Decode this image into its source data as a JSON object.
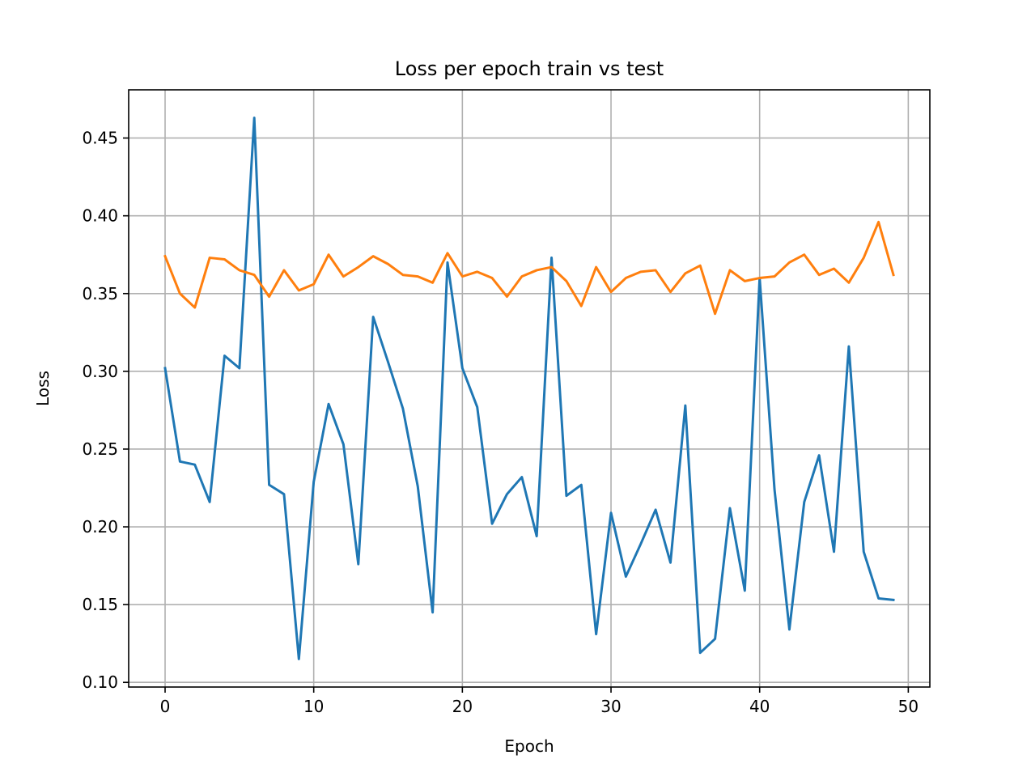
{
  "chart_data": {
    "type": "line",
    "title": "Loss per epoch train vs test",
    "xlabel": "Epoch",
    "ylabel": "Loss",
    "xlim": [
      -2.45,
      51.45
    ],
    "ylim": [
      0.097,
      0.481
    ],
    "xticks": [
      0,
      10,
      20,
      30,
      40,
      50
    ],
    "yticks": [
      0.1,
      0.15,
      0.2,
      0.25,
      0.3,
      0.35,
      0.4,
      0.45
    ],
    "xtick_labels": [
      "0",
      "10",
      "20",
      "30",
      "40",
      "50"
    ],
    "ytick_labels": [
      "0.10",
      "0.15",
      "0.20",
      "0.25",
      "0.30",
      "0.35",
      "0.40",
      "0.45"
    ],
    "grid": true,
    "legend": false,
    "x": [
      0,
      1,
      2,
      3,
      4,
      5,
      6,
      7,
      8,
      9,
      10,
      11,
      12,
      13,
      14,
      15,
      16,
      17,
      18,
      19,
      20,
      21,
      22,
      23,
      24,
      25,
      26,
      27,
      28,
      29,
      30,
      31,
      32,
      33,
      34,
      35,
      36,
      37,
      38,
      39,
      40,
      41,
      42,
      43,
      44,
      45,
      46,
      47,
      48,
      49
    ],
    "series": [
      {
        "color": "#1f77b4",
        "values": [
          0.302,
          0.242,
          0.24,
          0.216,
          0.31,
          0.302,
          0.463,
          0.227,
          0.221,
          0.115,
          0.229,
          0.279,
          0.253,
          0.176,
          0.335,
          0.306,
          0.276,
          0.226,
          0.145,
          0.37,
          0.302,
          0.277,
          0.202,
          0.221,
          0.232,
          0.194,
          0.373,
          0.22,
          0.227,
          0.131,
          0.209,
          0.168,
          0.189,
          0.211,
          0.177,
          0.278,
          0.119,
          0.128,
          0.212,
          0.159,
          0.36,
          0.224,
          0.134,
          0.216,
          0.246,
          0.184,
          0.316,
          0.184,
          0.154,
          0.153
        ]
      },
      {
        "color": "#ff7f0e",
        "values": [
          0.374,
          0.35,
          0.341,
          0.373,
          0.372,
          0.365,
          0.362,
          0.348,
          0.365,
          0.352,
          0.356,
          0.375,
          0.361,
          0.367,
          0.374,
          0.369,
          0.362,
          0.361,
          0.357,
          0.376,
          0.361,
          0.364,
          0.36,
          0.348,
          0.361,
          0.365,
          0.367,
          0.358,
          0.342,
          0.367,
          0.351,
          0.36,
          0.364,
          0.365,
          0.351,
          0.363,
          0.368,
          0.337,
          0.365,
          0.358,
          0.36,
          0.361,
          0.37,
          0.375,
          0.362,
          0.366,
          0.357,
          0.373,
          0.396,
          0.362
        ]
      }
    ]
  }
}
